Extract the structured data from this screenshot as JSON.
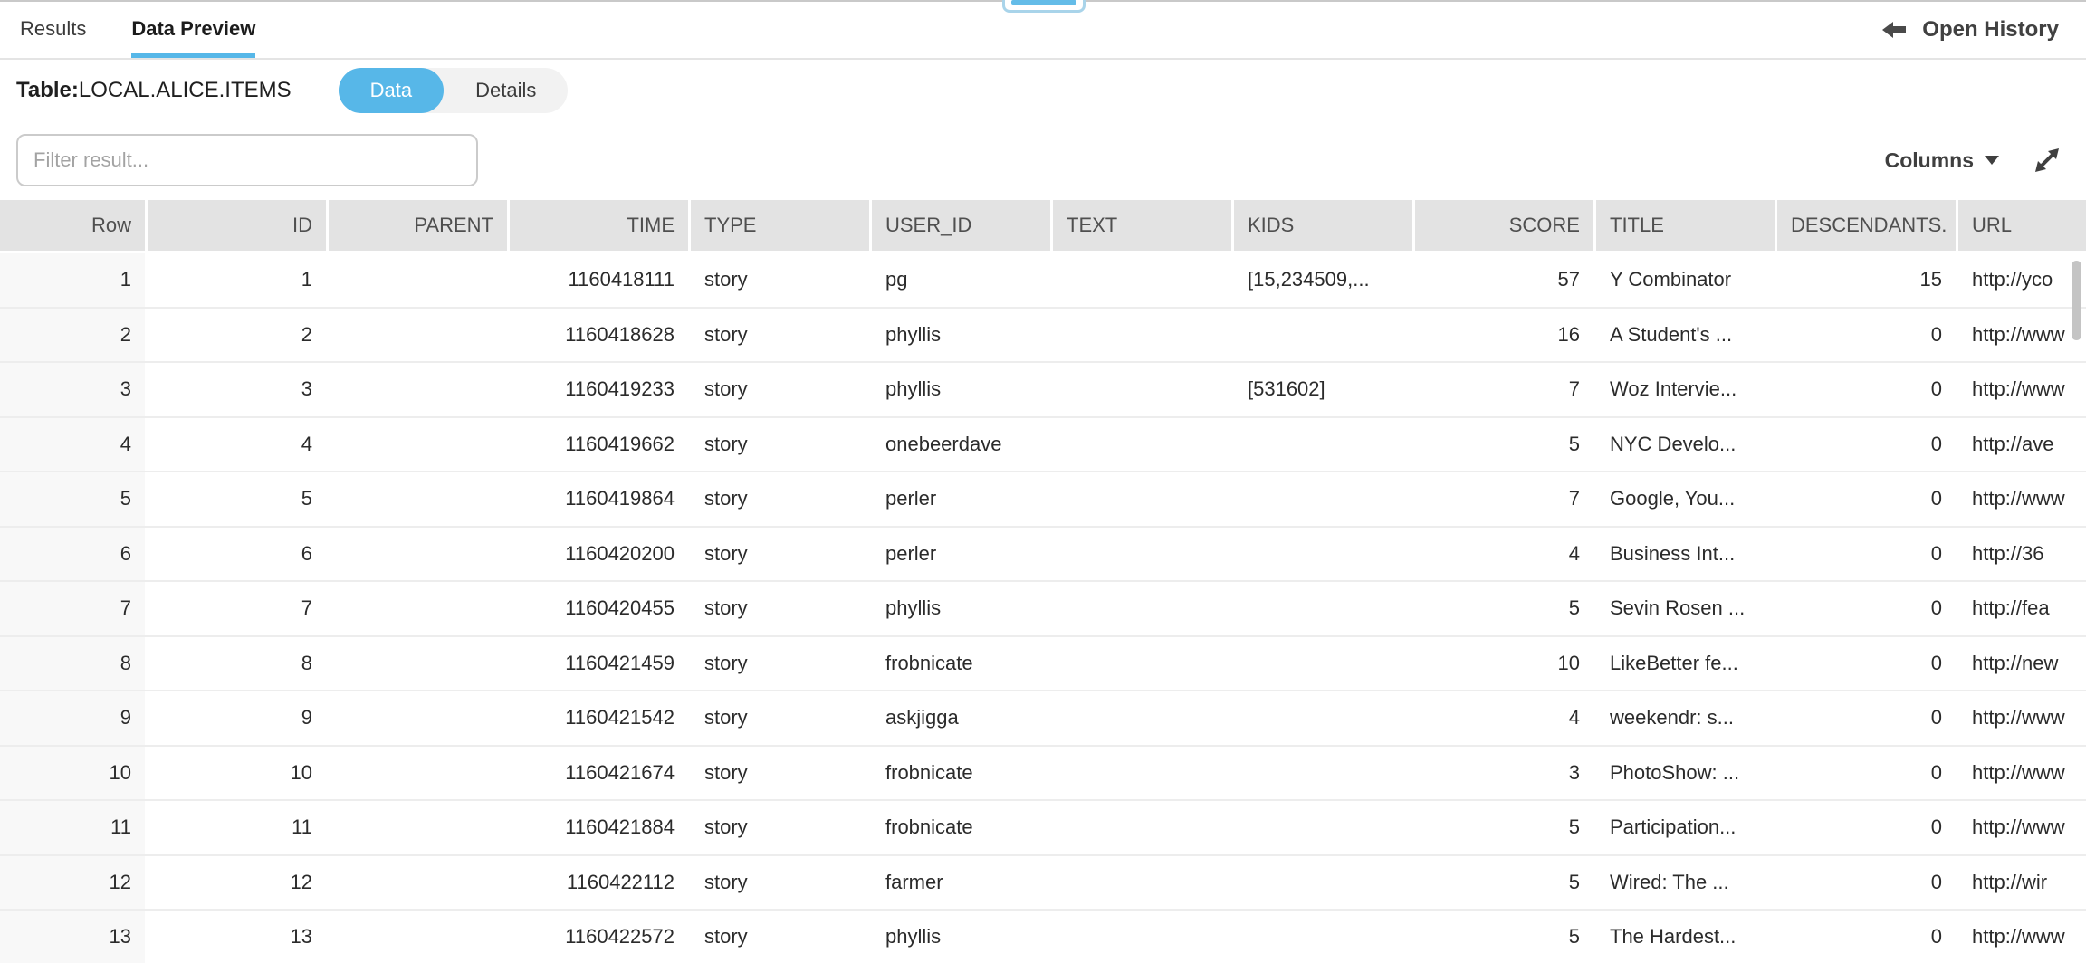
{
  "tabs": [
    {
      "label": "Results",
      "active": false
    },
    {
      "label": "Data Preview",
      "active": true
    }
  ],
  "open_history": {
    "label": "Open History"
  },
  "table_bar": {
    "label": "Table:",
    "table_name": "LOCAL.ALICE.ITEMS",
    "toggle": {
      "data_label": "Data",
      "details_label": "Details",
      "active": "Data"
    }
  },
  "filter": {
    "placeholder": "Filter result..."
  },
  "columns_button": {
    "label": "Columns"
  },
  "icons": {
    "back_arrow": "left-arrow-icon",
    "caret": "chevron-down-icon",
    "expand": "expand-diagonal-icon"
  },
  "colors": {
    "accent_blue": "#57b7e8",
    "header_gray": "#e3e3e3",
    "gutter_gray": "#f8f8f8",
    "row_separator": "#ededed"
  },
  "table": {
    "columns": [
      {
        "key": "row",
        "label": "Row",
        "align": "right"
      },
      {
        "key": "id",
        "label": "ID",
        "align": "right"
      },
      {
        "key": "parent",
        "label": "PARENT",
        "align": "right"
      },
      {
        "key": "time",
        "label": "TIME",
        "align": "right"
      },
      {
        "key": "type",
        "label": "TYPE",
        "align": "left"
      },
      {
        "key": "user_id",
        "label": "USER_ID",
        "align": "left"
      },
      {
        "key": "text",
        "label": "TEXT",
        "align": "left"
      },
      {
        "key": "kids",
        "label": "KIDS",
        "align": "left"
      },
      {
        "key": "score",
        "label": "SCORE",
        "align": "right"
      },
      {
        "key": "title",
        "label": "TITLE",
        "align": "left"
      },
      {
        "key": "descendants",
        "label": "DESCENDANTS.",
        "align": "left",
        "cell_align": "right"
      },
      {
        "key": "url",
        "label": "URL",
        "align": "left"
      }
    ],
    "rows": [
      [
        "1",
        "1",
        "",
        "1160418111",
        "story",
        "pg",
        "",
        "[15,234509,...",
        "57",
        "Y Combinator",
        "15",
        "http://yco"
      ],
      [
        "2",
        "2",
        "",
        "1160418628",
        "story",
        "phyllis",
        "",
        "",
        "16",
        "A Student's ...",
        "0",
        "http://www"
      ],
      [
        "3",
        "3",
        "",
        "1160419233",
        "story",
        "phyllis",
        "",
        "[531602]",
        "7",
        "Woz Intervie...",
        "0",
        "http://www"
      ],
      [
        "4",
        "4",
        "",
        "1160419662",
        "story",
        "onebeerdave",
        "",
        "",
        "5",
        "NYC Develo...",
        "0",
        "http://ave"
      ],
      [
        "5",
        "5",
        "",
        "1160419864",
        "story",
        "perler",
        "",
        "",
        "7",
        "Google, You...",
        "0",
        "http://www"
      ],
      [
        "6",
        "6",
        "",
        "1160420200",
        "story",
        "perler",
        "",
        "",
        "4",
        "Business Int...",
        "0",
        "http://36"
      ],
      [
        "7",
        "7",
        "",
        "1160420455",
        "story",
        "phyllis",
        "",
        "",
        "5",
        "Sevin Rosen ...",
        "0",
        "http://fea"
      ],
      [
        "8",
        "8",
        "",
        "1160421459",
        "story",
        "frobnicate",
        "",
        "",
        "10",
        "LikeBetter fe...",
        "0",
        "http://new"
      ],
      [
        "9",
        "9",
        "",
        "1160421542",
        "story",
        "askjigga",
        "",
        "",
        "4",
        "weekendr: s...",
        "0",
        "http://www"
      ],
      [
        "10",
        "10",
        "",
        "1160421674",
        "story",
        "frobnicate",
        "",
        "",
        "3",
        "PhotoShow: ...",
        "0",
        "http://www"
      ],
      [
        "11",
        "11",
        "",
        "1160421884",
        "story",
        "frobnicate",
        "",
        "",
        "5",
        "Participation...",
        "0",
        "http://www"
      ],
      [
        "12",
        "12",
        "",
        "1160422112",
        "story",
        "farmer",
        "",
        "",
        "5",
        "Wired: The ...",
        "0",
        "http://wir"
      ],
      [
        "13",
        "13",
        "",
        "1160422572",
        "story",
        "phyllis",
        "",
        "",
        "5",
        "The Hardest...",
        "0",
        "http://www"
      ]
    ]
  }
}
